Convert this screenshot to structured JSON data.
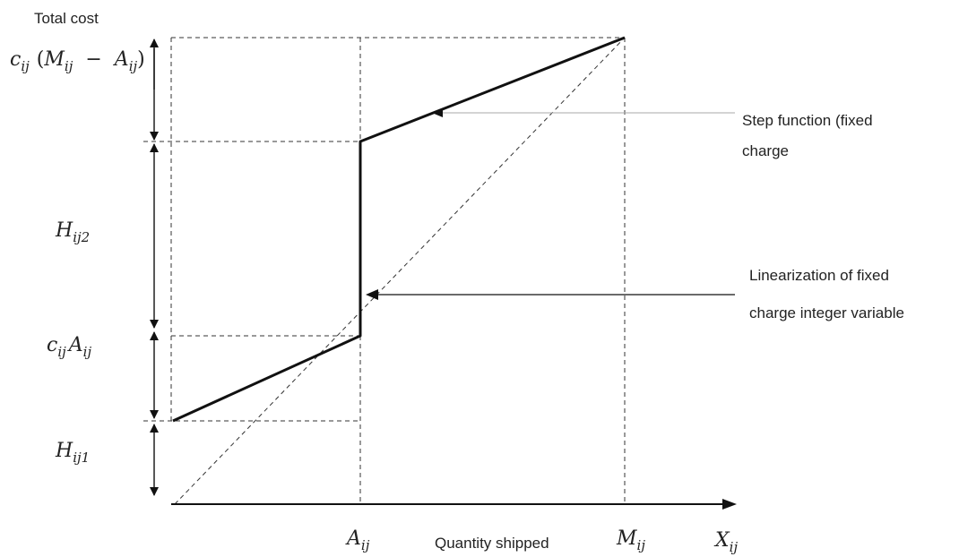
{
  "axis": {
    "y_title": "Total cost",
    "x_title": "Quantity shipped",
    "x_symbol_base": "X",
    "x_symbol_sub": "ij"
  },
  "tick_labels": {
    "a_base": "A",
    "a_sub": "ij",
    "m_base": "M",
    "m_sub": "ij"
  },
  "side_labels": {
    "top_c": "c",
    "top_c_sub": "ij",
    "top_open": "(",
    "top_m": "M",
    "top_m_sub": "ij",
    "top_minus": "−",
    "top_a": "A",
    "top_a_sub": "ij",
    "top_close": ")",
    "h2_base": "H",
    "h2_sub": "ij2",
    "mid_c": "c",
    "mid_c_sub": "ij",
    "mid_a": "A",
    "mid_a_sub": "ij",
    "h1_base": "H",
    "h1_sub": "ij1"
  },
  "annotations": {
    "step_line1": "Step function (fixed",
    "step_line2": "charge",
    "linear_line1": "Linearization of fixed",
    "linear_line2": "charge integer variable"
  },
  "colors": {
    "line": "#111111",
    "dashed": "#333333",
    "pointer_light": "#aaaaaa"
  }
}
